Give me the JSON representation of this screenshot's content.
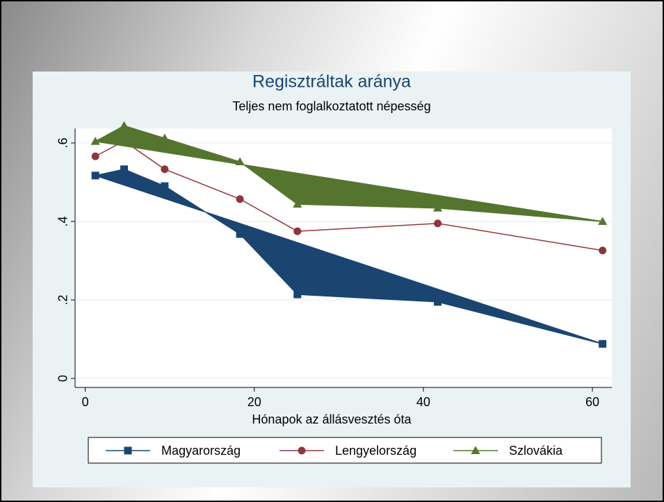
{
  "chart_data": {
    "type": "line",
    "title": "Regisztráltak aránya",
    "subtitle": "Teljes nem foglalkoztatott népesség",
    "x_label": "Hónapok az állásvesztés óta",
    "x": [
      1.2,
      4.6,
      9.4,
      18.3,
      25.1,
      41.7,
      61.2
    ],
    "series": [
      {
        "name": "Magyarország",
        "color": "#1a4571",
        "marker": "square",
        "filled": true,
        "values": [
          0.517,
          0.533,
          0.49,
          0.368,
          0.214,
          0.195,
          0.088
        ]
      },
      {
        "name": "Lengyelország",
        "color": "#90353b",
        "marker": "circle",
        "filled": false,
        "values": [
          0.566,
          0.605,
          0.533,
          0.457,
          0.375,
          0.395,
          0.326
        ]
      },
      {
        "name": "Szlovákia",
        "color": "#55752f",
        "marker": "triangle",
        "filled": true,
        "values": [
          0.604,
          0.644,
          0.612,
          0.552,
          0.444,
          0.434,
          0.4
        ]
      }
    ],
    "xlim": [
      -1.2,
      62.3
    ],
    "xticks": [
      0,
      20,
      40,
      60
    ],
    "ylim": [
      -0.023,
      0.637
    ],
    "yticks": [
      0,
      {
        "value": 0.2,
        "label": ".2"
      },
      {
        "value": 0.4,
        "label": ".4"
      },
      {
        "value": 0.6,
        "label": ".6"
      }
    ],
    "grid": true,
    "legend": "bottom"
  }
}
